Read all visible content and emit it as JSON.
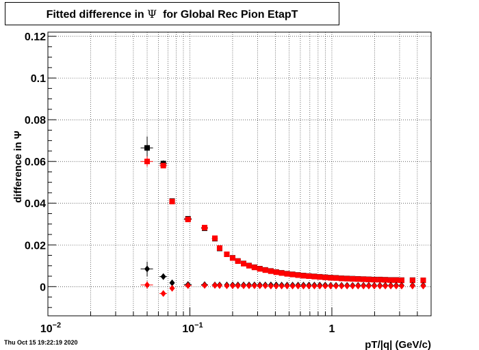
{
  "title": {
    "before": "Fitted difference in ",
    "symbol": "Ψ",
    "after": "  for Global Rec Pion EtapT"
  },
  "footer": {
    "timestamp": "Thu Oct 15 19:22:19 2020"
  },
  "chart_data": {
    "type": "scatter",
    "title": "Fitted difference in Ψ for Global Rec Pion EtapT",
    "xlabel": "pT/|q| (GeV/c)",
    "ylabel": "difference in  Ψ",
    "xscale": "log",
    "xlim": [
      0.01,
      5.0
    ],
    "ylim": [
      -0.014,
      0.122
    ],
    "grid": true,
    "x_ticks": [
      {
        "value": 0.01,
        "base": "10",
        "exp": "−2"
      },
      {
        "value": 0.1,
        "base": "10",
        "exp": "−1"
      },
      {
        "value": 1,
        "base": "1",
        "exp": ""
      }
    ],
    "y_ticks": [
      {
        "value": 0,
        "label": "0"
      },
      {
        "value": 0.02,
        "label": "0.02"
      },
      {
        "value": 0.04,
        "label": "0.04"
      },
      {
        "value": 0.06,
        "label": "0.06"
      },
      {
        "value": 0.08,
        "label": "0.08"
      },
      {
        "value": 0.1,
        "label": "0.1"
      },
      {
        "value": 0.12,
        "label": "0.12"
      }
    ],
    "series": [
      {
        "marker": "square",
        "color": "#000000",
        "points": [
          [
            0.05,
            0.0665,
            0.005,
            0.0055
          ],
          [
            0.065,
            0.059,
            0.004,
            0.0015
          ],
          [
            0.075,
            0.041,
            0.003,
            0.001
          ],
          [
            0.097,
            0.0325,
            0.006,
            0.001
          ],
          [
            0.127,
            0.028,
            0.007,
            0.0008
          ],
          [
            0.15,
            0.023,
            0.007,
            0.0007
          ],
          [
            0.162,
            0.0183,
            0.004,
            0.0006
          ],
          [
            0.182,
            0.0155,
            0.004,
            0.0005
          ],
          [
            0.2,
            0.0138,
            0.005,
            0.0005
          ],
          [
            0.218,
            0.0123,
            0.005,
            0.0004
          ],
          [
            0.239,
            0.0111,
            0.006,
            0.0004
          ],
          [
            0.261,
            0.0101,
            0.006,
            0.0004
          ],
          [
            0.285,
            0.0093,
            0.006,
            0.0004
          ],
          [
            0.311,
            0.0086,
            0.007,
            0.0004
          ],
          [
            0.34,
            0.008,
            0.007,
            0.0003
          ],
          [
            0.372,
            0.0075,
            0.008,
            0.0003
          ],
          [
            0.406,
            0.007,
            0.008,
            0.0003
          ],
          [
            0.443,
            0.0066,
            0.009,
            0.0003
          ],
          [
            0.484,
            0.0062,
            0.01,
            0.0003
          ],
          [
            0.529,
            0.0059,
            0.01,
            0.0003
          ],
          [
            0.578,
            0.0056,
            0.011,
            0.0003
          ],
          [
            0.631,
            0.0053,
            0.012,
            0.0003
          ],
          [
            0.689,
            0.0051,
            0.013,
            0.0003
          ],
          [
            0.753,
            0.0049,
            0.014,
            0.0003
          ],
          [
            0.822,
            0.0047,
            0.015,
            0.0003
          ],
          [
            0.898,
            0.0045,
            0.016,
            0.0003
          ],
          [
            0.981,
            0.0043,
            0.017,
            0.0003
          ],
          [
            1.07,
            0.0042,
            0.018,
            0.0003
          ],
          [
            1.17,
            0.004,
            0.02,
            0.0003
          ],
          [
            1.28,
            0.0039,
            0.02,
            0.0003
          ],
          [
            1.4,
            0.0038,
            0.02,
            0.0003
          ],
          [
            1.53,
            0.0037,
            0.03,
            0.0003
          ],
          [
            1.67,
            0.0036,
            0.03,
            0.0003
          ],
          [
            1.82,
            0.0035,
            0.03,
            0.0003
          ],
          [
            1.99,
            0.0034,
            0.03,
            0.0003
          ],
          [
            2.18,
            0.0034,
            0.04,
            0.0003
          ],
          [
            2.38,
            0.0033,
            0.04,
            0.0003
          ],
          [
            2.6,
            0.0032,
            0.04,
            0.0003
          ],
          [
            2.84,
            0.0032,
            0.05,
            0.0003
          ],
          [
            3.1,
            0.0031,
            0.05,
            0.0003
          ],
          [
            3.7,
            0.0031,
            0.06,
            0.0004
          ],
          [
            4.4,
            0.003,
            0.07,
            0.0004
          ]
        ]
      },
      {
        "marker": "square",
        "color": "#ff0000",
        "points": [
          [
            0.05,
            0.06,
            0.005,
            0.0025
          ],
          [
            0.065,
            0.058,
            0.004,
            0.0012
          ],
          [
            0.075,
            0.0408,
            0.003,
            0.001
          ],
          [
            0.097,
            0.0322,
            0.006,
            0.0009
          ],
          [
            0.127,
            0.0283,
            0.007,
            0.0008
          ],
          [
            0.15,
            0.0232,
            0.007,
            0.0007
          ],
          [
            0.162,
            0.0185,
            0.004,
            0.0006
          ],
          [
            0.182,
            0.0155,
            0.004,
            0.0005
          ],
          [
            0.2,
            0.0137,
            0.005,
            0.0005
          ],
          [
            0.218,
            0.0122,
            0.005,
            0.0004
          ],
          [
            0.239,
            0.011,
            0.006,
            0.0004
          ],
          [
            0.261,
            0.01,
            0.006,
            0.0004
          ],
          [
            0.285,
            0.0092,
            0.006,
            0.0004
          ],
          [
            0.311,
            0.0085,
            0.007,
            0.0004
          ],
          [
            0.34,
            0.0079,
            0.007,
            0.0003
          ],
          [
            0.372,
            0.0074,
            0.008,
            0.0003
          ],
          [
            0.406,
            0.0069,
            0.008,
            0.0003
          ],
          [
            0.443,
            0.0065,
            0.009,
            0.0003
          ],
          [
            0.484,
            0.0061,
            0.01,
            0.0003
          ],
          [
            0.529,
            0.0058,
            0.01,
            0.0003
          ],
          [
            0.578,
            0.0055,
            0.011,
            0.0003
          ],
          [
            0.631,
            0.0052,
            0.012,
            0.0003
          ],
          [
            0.689,
            0.005,
            0.013,
            0.0003
          ],
          [
            0.753,
            0.0048,
            0.014,
            0.0003
          ],
          [
            0.822,
            0.0046,
            0.015,
            0.0003
          ],
          [
            0.898,
            0.0044,
            0.016,
            0.0003
          ],
          [
            0.981,
            0.0042,
            0.017,
            0.0003
          ],
          [
            1.07,
            0.0041,
            0.018,
            0.0003
          ],
          [
            1.17,
            0.0039,
            0.02,
            0.0003
          ],
          [
            1.28,
            0.0038,
            0.02,
            0.0003
          ],
          [
            1.4,
            0.0037,
            0.02,
            0.0003
          ],
          [
            1.53,
            0.0036,
            0.03,
            0.0003
          ],
          [
            1.67,
            0.0035,
            0.03,
            0.0003
          ],
          [
            1.82,
            0.0034,
            0.03,
            0.0003
          ],
          [
            1.99,
            0.0033,
            0.03,
            0.0003
          ],
          [
            2.18,
            0.0033,
            0.04,
            0.0003
          ],
          [
            2.38,
            0.0032,
            0.04,
            0.0003
          ],
          [
            2.6,
            0.0031,
            0.04,
            0.0003
          ],
          [
            2.84,
            0.0031,
            0.05,
            0.0003
          ],
          [
            3.1,
            0.003,
            0.05,
            0.0003
          ],
          [
            3.7,
            0.003,
            0.06,
            0.0003
          ],
          [
            4.4,
            0.003,
            0.07,
            0.0003
          ]
        ]
      },
      {
        "marker": "diamond",
        "color": "#000000",
        "points": [
          [
            0.05,
            0.0085,
            0.005,
            0.0035
          ],
          [
            0.065,
            0.0048,
            0.004,
            0.001
          ],
          [
            0.075,
            0.0018,
            0.003,
            0.0006
          ],
          [
            0.097,
            0.001,
            0.006,
            0.0004
          ],
          [
            0.127,
            0.0009,
            0.007,
            0.0003
          ],
          [
            0.15,
            0.0008,
            0.007,
            0.0003
          ],
          [
            0.162,
            0.0008,
            0.004,
            0.0002
          ],
          [
            0.182,
            0.0008,
            0.004,
            0.0002
          ],
          [
            0.2,
            0.0008,
            0.005,
            0.0002
          ],
          [
            0.218,
            0.0008,
            0.005,
            0.0002
          ],
          [
            0.239,
            0.0008,
            0.006,
            0.0002
          ],
          [
            0.261,
            0.0008,
            0.006,
            0.0002
          ],
          [
            0.285,
            0.0008,
            0.006,
            0.0002
          ],
          [
            0.311,
            0.0008,
            0.007,
            0.0002
          ],
          [
            0.34,
            0.0008,
            0.007,
            0.0002
          ],
          [
            0.372,
            0.0008,
            0.008,
            0.0002
          ],
          [
            0.406,
            0.0008,
            0.008,
            0.0002
          ],
          [
            0.443,
            0.0007,
            0.009,
            0.0002
          ],
          [
            0.484,
            0.0007,
            0.01,
            0.0002
          ],
          [
            0.529,
            0.0007,
            0.01,
            0.0002
          ],
          [
            0.578,
            0.0007,
            0.011,
            0.0002
          ],
          [
            0.631,
            0.0007,
            0.012,
            0.0002
          ],
          [
            0.689,
            0.0007,
            0.013,
            0.0002
          ],
          [
            0.753,
            0.0007,
            0.014,
            0.0002
          ],
          [
            0.822,
            0.0007,
            0.015,
            0.0002
          ],
          [
            0.898,
            0.0007,
            0.016,
            0.0002
          ],
          [
            0.981,
            0.0006,
            0.017,
            0.0002
          ],
          [
            1.07,
            0.0006,
            0.018,
            0.0002
          ],
          [
            1.17,
            0.0006,
            0.02,
            0.0002
          ],
          [
            1.28,
            0.0006,
            0.02,
            0.0002
          ],
          [
            1.4,
            0.0006,
            0.02,
            0.0002
          ],
          [
            1.53,
            0.0006,
            0.03,
            0.0002
          ],
          [
            1.67,
            0.0006,
            0.03,
            0.0002
          ],
          [
            1.82,
            0.0006,
            0.03,
            0.0002
          ],
          [
            1.99,
            0.0006,
            0.03,
            0.0002
          ],
          [
            2.18,
            0.0006,
            0.04,
            0.0002
          ],
          [
            2.38,
            0.0006,
            0.04,
            0.0002
          ],
          [
            2.6,
            0.0006,
            0.04,
            0.0002
          ],
          [
            2.84,
            0.0006,
            0.05,
            0.0002
          ],
          [
            3.1,
            0.0006,
            0.05,
            0.0002
          ],
          [
            3.7,
            0.0006,
            0.06,
            0.0002
          ],
          [
            4.4,
            0.0006,
            0.07,
            0.0002
          ]
        ]
      },
      {
        "marker": "diamond",
        "color": "#ff0000",
        "points": [
          [
            0.05,
            0.0008,
            0.005,
            0.0018
          ],
          [
            0.065,
            -0.0033,
            0.004,
            0.0008
          ],
          [
            0.075,
            -0.0008,
            0.003,
            0.0006
          ],
          [
            0.097,
            0.0005,
            0.006,
            0.0004
          ],
          [
            0.127,
            0.0006,
            0.007,
            0.0003
          ],
          [
            0.15,
            0.0006,
            0.007,
            0.0003
          ],
          [
            0.162,
            0.0005,
            0.004,
            0.0002
          ],
          [
            0.182,
            0.0004,
            0.004,
            0.0002
          ],
          [
            0.2,
            0.0004,
            0.005,
            0.0002
          ],
          [
            0.218,
            0.0004,
            0.005,
            0.0002
          ],
          [
            0.239,
            0.0004,
            0.006,
            0.0002
          ],
          [
            0.261,
            0.0004,
            0.006,
            0.0002
          ],
          [
            0.285,
            0.0004,
            0.006,
            0.0002
          ],
          [
            0.311,
            0.0004,
            0.007,
            0.0002
          ],
          [
            0.34,
            0.0004,
            0.007,
            0.0002
          ],
          [
            0.372,
            0.0003,
            0.008,
            0.0002
          ],
          [
            0.406,
            0.0003,
            0.008,
            0.0002
          ],
          [
            0.443,
            0.0003,
            0.009,
            0.0002
          ],
          [
            0.484,
            0.0003,
            0.01,
            0.0002
          ],
          [
            0.529,
            0.0003,
            0.01,
            0.0002
          ],
          [
            0.578,
            0.0003,
            0.011,
            0.0002
          ],
          [
            0.631,
            0.0003,
            0.012,
            0.0002
          ],
          [
            0.689,
            0.0003,
            0.013,
            0.0002
          ],
          [
            0.753,
            0.0003,
            0.014,
            0.0002
          ],
          [
            0.822,
            0.0003,
            0.015,
            0.0002
          ],
          [
            0.898,
            0.0003,
            0.016,
            0.0002
          ],
          [
            0.981,
            0.0003,
            0.017,
            0.0002
          ],
          [
            1.07,
            0.0003,
            0.018,
            0.0002
          ],
          [
            1.17,
            0.0003,
            0.02,
            0.0002
          ],
          [
            1.28,
            0.0003,
            0.02,
            0.0002
          ],
          [
            1.4,
            0.0003,
            0.02,
            0.0002
          ],
          [
            1.53,
            0.0003,
            0.03,
            0.0002
          ],
          [
            1.67,
            0.0003,
            0.03,
            0.0002
          ],
          [
            1.82,
            0.0003,
            0.03,
            0.0002
          ],
          [
            1.99,
            0.0003,
            0.03,
            0.0002
          ],
          [
            2.18,
            0.0003,
            0.04,
            0.0002
          ],
          [
            2.38,
            0.0003,
            0.04,
            0.0002
          ],
          [
            2.6,
            0.0003,
            0.04,
            0.0002
          ],
          [
            2.84,
            0.0003,
            0.05,
            0.0002
          ],
          [
            3.1,
            0.0003,
            0.05,
            0.0002
          ],
          [
            3.7,
            0.0003,
            0.06,
            0.0002
          ],
          [
            4.4,
            0.0003,
            0.07,
            0.0002
          ]
        ]
      }
    ]
  }
}
